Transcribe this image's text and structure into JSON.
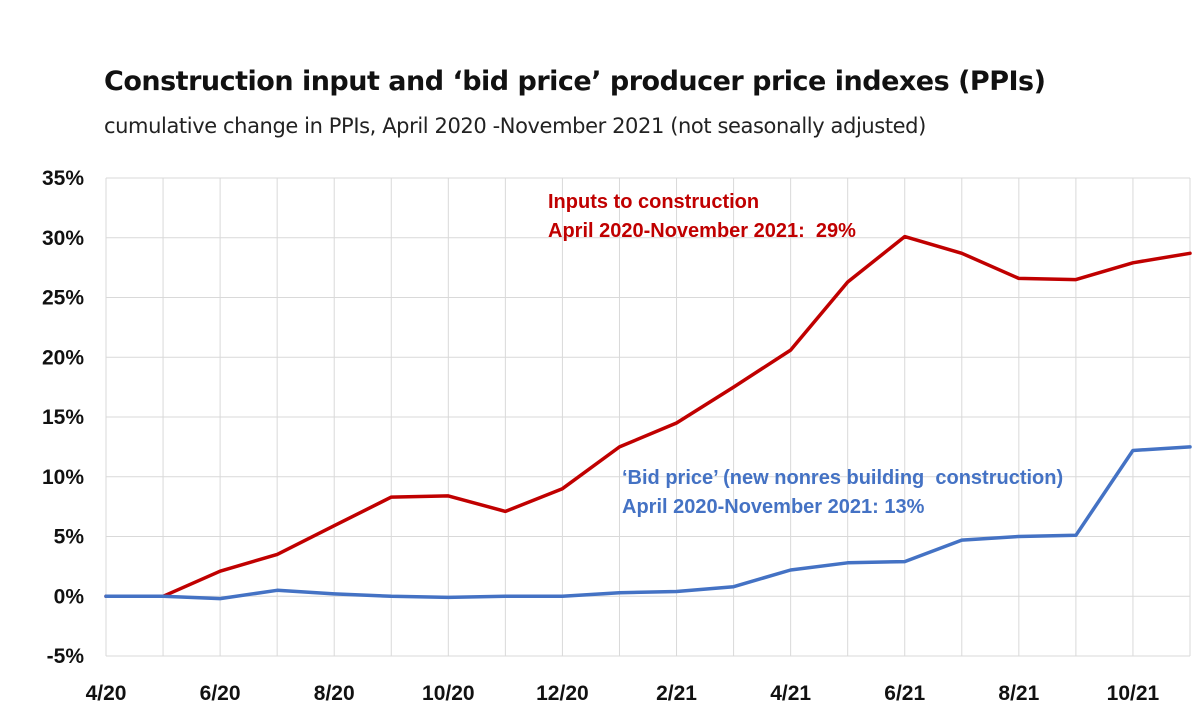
{
  "chart_data": {
    "type": "line",
    "title": "Construction input and ‘bid price’ producer price indexes (PPIs)",
    "subtitle": "cumulative change in PPIs, April 2020 -November 2021 (not seasonally adjusted)",
    "x_tick_labels": [
      "4/20",
      "6/20",
      "8/20",
      "10/20",
      "12/20",
      "2/21",
      "4/21",
      "6/21",
      "8/21",
      "10/21"
    ],
    "y_tick_labels": [
      "35%",
      "30%",
      "25%",
      "20%",
      "15%",
      "10%",
      "5%",
      "0%",
      "-5%"
    ],
    "x": [
      "4/20",
      "5/20",
      "6/20",
      "7/20",
      "8/20",
      "9/20",
      "10/20",
      "11/20",
      "12/20",
      "1/21",
      "2/21",
      "3/21",
      "4/21",
      "5/21",
      "6/21",
      "7/21",
      "8/21",
      "9/21",
      "10/21",
      "11/21"
    ],
    "ylim": [
      -5,
      35
    ],
    "y_ticks": [
      35,
      30,
      25,
      20,
      15,
      10,
      5,
      0,
      -5
    ],
    "grid": true,
    "legend": "none",
    "series": [
      {
        "key": "inputs",
        "color": "#c00000",
        "values": [
          0,
          0,
          2.1,
          3.5,
          5.9,
          8.3,
          8.4,
          7.1,
          9.0,
          12.5,
          14.5,
          17.5,
          20.6,
          26.3,
          30.1,
          28.7,
          26.6,
          26.5,
          27.9,
          28.7
        ],
        "annotation": [
          "Inputs to construction",
          "April 2020-November 2021:  29%"
        ]
      },
      {
        "key": "bid",
        "color": "#4472c4",
        "values": [
          0,
          0,
          -0.2,
          0.5,
          0.2,
          0.0,
          -0.1,
          0.0,
          0.0,
          0.3,
          0.4,
          0.8,
          2.2,
          2.8,
          2.9,
          4.7,
          5.0,
          5.1,
          12.2,
          12.5
        ],
        "annotation": [
          "‘Bid price’ (new nonres building  construction)",
          "April 2020-November 2021: 13%"
        ]
      }
    ]
  }
}
